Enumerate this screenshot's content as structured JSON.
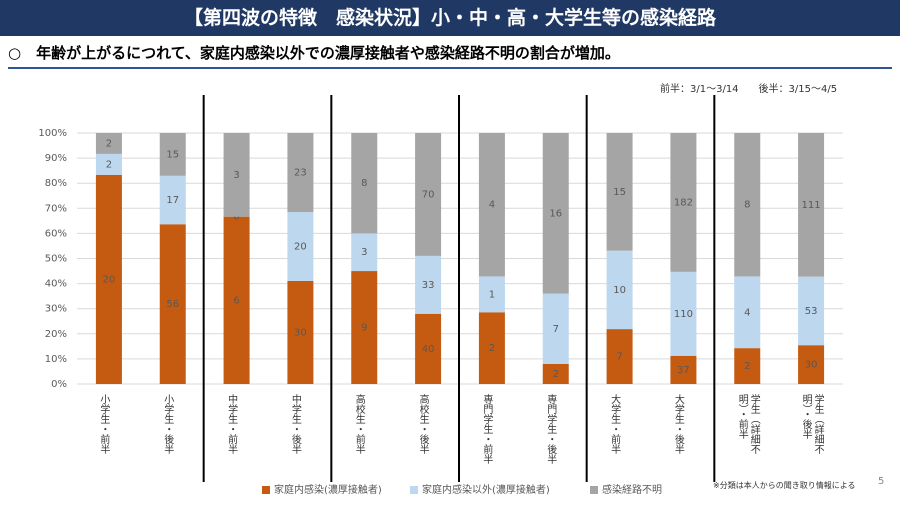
{
  "header": {
    "title": "【第四波の特徴　感染状況】小・中・高・大学生等の感染経路",
    "subtitle": "○　年齢が上がるにつれて、家庭内感染以外での濃厚接触者や感染経路不明の割合が増加。",
    "period_note": "前半：3/1～3/14　　後半：3/15～4/5",
    "footnote": "※分類は本人からの聞き取り情報による",
    "page_number": "5"
  },
  "chart_data": {
    "type": "bar",
    "stacked": "percent",
    "categories": [
      "小学生・前半",
      "小学生・後半",
      "中学生・前半",
      "中学生・後半",
      "高校生・前半",
      "高校生・後半",
      "専門学生・前半",
      "専門学生・後半",
      "大学生・前半",
      "大学生・後半",
      "学生（詳細不明）・前半",
      "学生（詳細不明）・後半"
    ],
    "series": [
      {
        "name": "家庭内感染(濃厚接触者)",
        "color": "#c55a11",
        "values": [
          20,
          56,
          6,
          30,
          9,
          40,
          2,
          2,
          7,
          37,
          2,
          30
        ]
      },
      {
        "name": "家庭内感染以外(濃厚接触者)",
        "color": "#bdd7ee",
        "values": [
          2,
          17,
          0,
          20,
          3,
          33,
          1,
          7,
          10,
          110,
          4,
          53
        ]
      },
      {
        "name": "感染経路不明",
        "color": "#a5a5a5",
        "values": [
          2,
          15,
          3,
          23,
          8,
          70,
          4,
          16,
          15,
          182,
          8,
          111
        ]
      }
    ],
    "ylim": [
      0,
      100
    ],
    "yticks": [
      {
        "value": 0,
        "label": "0%"
      },
      {
        "value": 10,
        "label": "10%"
      },
      {
        "value": 20,
        "label": "20%"
      },
      {
        "value": 30,
        "label": "30%"
      },
      {
        "value": 40,
        "label": "40%"
      },
      {
        "value": 50,
        "label": "50%"
      },
      {
        "value": 60,
        "label": "60%"
      },
      {
        "value": 70,
        "label": "70%"
      },
      {
        "value": 80,
        "label": "80%"
      },
      {
        "value": 90,
        "label": "90%"
      },
      {
        "value": 100,
        "label": "100%"
      }
    ],
    "grid": true,
    "legend": "bottom"
  }
}
